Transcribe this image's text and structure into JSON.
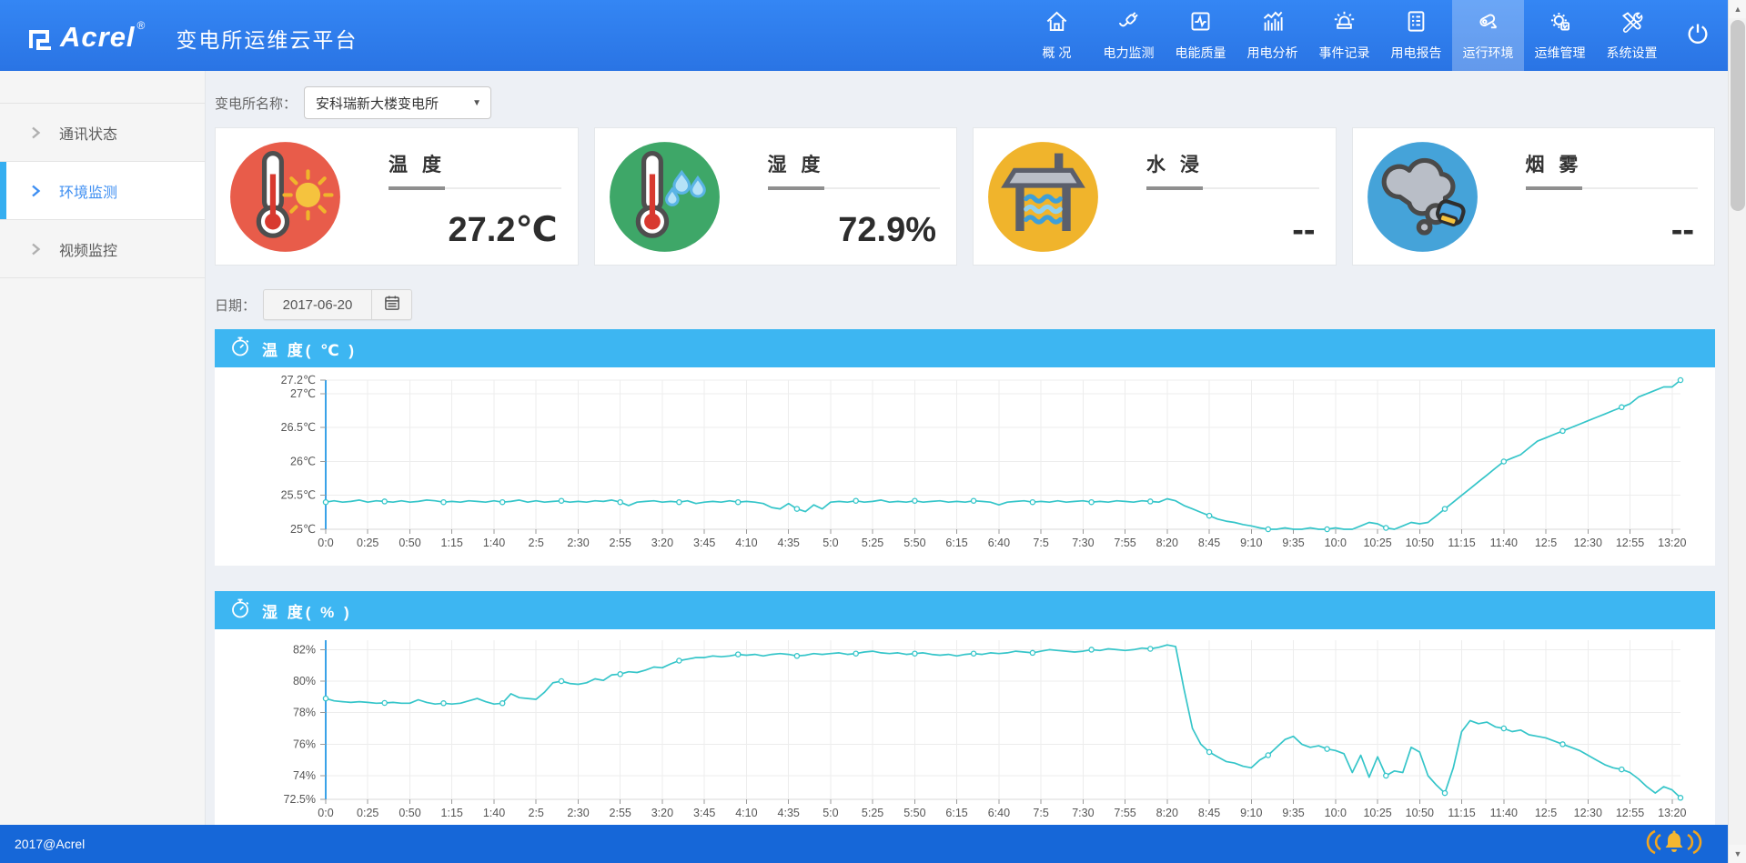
{
  "header": {
    "logo": "Acrel",
    "logo_reg": "®",
    "title": "变电所运维云平台",
    "nav": [
      {
        "label": "概 况",
        "icon": "home-icon",
        "active": false
      },
      {
        "label": "电力监测",
        "icon": "plug-icon",
        "active": false
      },
      {
        "label": "电能质量",
        "icon": "pulse-square-icon",
        "active": false
      },
      {
        "label": "用电分析",
        "icon": "bar-chart-icon",
        "active": false
      },
      {
        "label": "事件记录",
        "icon": "siren-icon",
        "active": false
      },
      {
        "label": "用电报告",
        "icon": "report-icon",
        "active": false
      },
      {
        "label": "运行环境",
        "icon": "cctv-icon",
        "active": true
      },
      {
        "label": "运维管理",
        "icon": "gear-icon",
        "active": false
      },
      {
        "label": "系统设置",
        "icon": "tools-icon",
        "active": false
      }
    ],
    "power_icon": "power-icon"
  },
  "sidebar": {
    "items": [
      {
        "label": "通讯状态",
        "active": false
      },
      {
        "label": "环境监测",
        "active": true
      },
      {
        "label": "视频监控",
        "active": false
      }
    ]
  },
  "toolbar": {
    "station_label": "变电所名称：",
    "station_value": "安科瑞新大楼变电所"
  },
  "cards": [
    {
      "title": "温 度",
      "value": "27.2℃",
      "circle_color": "#e85c4a",
      "icon": "thermometer-sun-icon"
    },
    {
      "title": "湿 度",
      "value": "72.9%",
      "circle_color": "#3ea768",
      "icon": "thermometer-drops-icon"
    },
    {
      "title": "水 浸",
      "value": "--",
      "circle_color": "#f0b42c",
      "icon": "water-tank-icon"
    },
    {
      "title": "烟 雾",
      "value": "--",
      "circle_color": "#45a3d9",
      "icon": "smoke-icon"
    }
  ],
  "date_filter": {
    "label": "日期：",
    "value": "2017-06-20",
    "calendar_icon": "calendar-icon"
  },
  "footer": {
    "copyright": "2017@Acrel",
    "alarm_icon": "alarm-bell-icon"
  },
  "colors": {
    "header_blue": "#2e7cec",
    "panel_header_blue": "#3db6f2",
    "footer_blue": "#1667d8",
    "series_teal": "#35c5c9",
    "axis_blue": "#3aa2e8",
    "alarm_orange": "#f2a51e"
  },
  "chart_data": [
    {
      "type": "line",
      "title": "温 度( ℃ )",
      "ylabel": "℃",
      "color": "#35c5c9",
      "y_min": 25,
      "y_max": 27.2,
      "grid": true,
      "legend": "none",
      "marker_step": 7,
      "x_tick_every": 5,
      "layout": {
        "t": 14,
        "r": 38,
        "b": 40,
        "l": 122
      },
      "y_ticks": [
        {
          "v": 25,
          "label": "25℃"
        },
        {
          "v": 25.5,
          "label": "25.5℃"
        },
        {
          "v": 26,
          "label": "26℃"
        },
        {
          "v": 26.5,
          "label": "26.5℃"
        },
        {
          "v": 27,
          "label": "27℃"
        },
        {
          "v": 27.2,
          "label": "27.2℃"
        }
      ],
      "x_labels": [
        "0:0",
        "0:25",
        "0:50",
        "1:15",
        "1:40",
        "2:5",
        "2:30",
        "2:55",
        "3:20",
        "3:45",
        "4:10",
        "4:35",
        "5:0",
        "5:25",
        "5:50",
        "6:15",
        "6:40",
        "7:5",
        "7:30",
        "7:55",
        "8:20",
        "8:45",
        "9:10",
        "9:35",
        "10:0",
        "10:25",
        "10:50",
        "11:15",
        "11:40",
        "12:5",
        "12:30",
        "12:55",
        "13:20"
      ],
      "values": [
        25.4,
        25.42,
        25.4,
        25.41,
        25.43,
        25.4,
        25.42,
        25.41,
        25.4,
        25.42,
        25.4,
        25.41,
        25.43,
        25.42,
        25.4,
        25.41,
        25.4,
        25.42,
        25.41,
        25.4,
        25.42,
        25.4,
        25.41,
        25.43,
        25.4,
        25.42,
        25.4,
        25.41,
        25.42,
        25.4,
        25.41,
        25.4,
        25.42,
        25.41,
        25.43,
        25.4,
        25.35,
        25.4,
        25.41,
        25.42,
        25.4,
        25.41,
        25.4,
        25.42,
        25.38,
        25.4,
        25.41,
        25.4,
        25.42,
        25.4,
        25.41,
        25.4,
        25.38,
        25.32,
        25.3,
        25.38,
        25.3,
        25.26,
        25.36,
        25.3,
        25.4,
        25.41,
        25.4,
        25.42,
        25.4,
        25.41,
        25.43,
        25.4,
        25.41,
        25.4,
        25.42,
        25.4,
        25.41,
        25.42,
        25.4,
        25.41,
        25.4,
        25.42,
        25.41,
        25.4,
        25.36,
        25.4,
        25.41,
        25.42,
        25.4,
        25.41,
        25.4,
        25.42,
        25.4,
        25.41,
        25.42,
        25.4,
        25.41,
        25.4,
        25.42,
        25.41,
        25.4,
        25.42,
        25.41,
        25.4,
        25.45,
        25.42,
        25.35,
        25.3,
        25.25,
        25.2,
        25.15,
        25.12,
        25.1,
        25.07,
        25.05,
        25.02,
        25.0,
        25.0,
        25.02,
        25.0,
        25.0,
        25.02,
        25.0,
        25.0,
        25.02,
        25.0,
        25.0,
        25.05,
        25.1,
        25.08,
        25.02,
        25.0,
        25.05,
        25.1,
        25.08,
        25.1,
        25.2,
        25.3,
        25.4,
        25.5,
        25.6,
        25.7,
        25.8,
        25.9,
        26.0,
        26.05,
        26.1,
        26.2,
        26.3,
        26.35,
        26.4,
        26.45,
        26.5,
        26.55,
        26.6,
        26.65,
        26.7,
        26.75,
        26.8,
        26.85,
        26.95,
        27.0,
        27.05,
        27.1,
        27.1,
        27.2
      ]
    },
    {
      "type": "line",
      "title": "湿 度( % )",
      "ylabel": "%",
      "color": "#35c5c9",
      "y_min": 72.5,
      "y_max": 82.6,
      "grid": true,
      "legend": "none",
      "marker_step": 7,
      "x_tick_every": 5,
      "layout": {
        "t": 12,
        "r": 38,
        "b": 28,
        "l": 122
      },
      "y_ticks": [
        {
          "v": 72.5,
          "label": "72.5%"
        },
        {
          "v": 74,
          "label": "74%"
        },
        {
          "v": 76,
          "label": "76%"
        },
        {
          "v": 78,
          "label": "78%"
        },
        {
          "v": 80,
          "label": "80%"
        },
        {
          "v": 82,
          "label": "82%"
        }
      ],
      "x_labels": [
        "0:0",
        "0:25",
        "0:50",
        "1:15",
        "1:40",
        "2:5",
        "2:30",
        "2:55",
        "3:20",
        "3:45",
        "4:10",
        "4:35",
        "5:0",
        "5:25",
        "5:50",
        "6:15",
        "6:40",
        "7:5",
        "7:30",
        "7:55",
        "8:20",
        "8:45",
        "9:10",
        "9:35",
        "10:0",
        "10:25",
        "10:50",
        "11:15",
        "11:40",
        "12:5",
        "12:30",
        "12:55",
        "13:20"
      ],
      "values": [
        78.9,
        78.75,
        78.7,
        78.65,
        78.7,
        78.65,
        78.6,
        78.62,
        78.65,
        78.6,
        78.6,
        78.82,
        78.65,
        78.55,
        78.6,
        78.55,
        78.6,
        78.75,
        78.9,
        78.7,
        78.55,
        78.6,
        79.2,
        78.95,
        78.9,
        78.85,
        79.3,
        79.9,
        80.0,
        79.85,
        79.8,
        79.9,
        80.15,
        80.05,
        80.4,
        80.45,
        80.6,
        80.55,
        80.7,
        80.9,
        80.85,
        81.1,
        81.3,
        81.4,
        81.5,
        81.5,
        81.6,
        81.55,
        81.6,
        81.7,
        81.65,
        81.7,
        81.6,
        81.7,
        81.75,
        81.7,
        81.6,
        81.65,
        81.75,
        81.7,
        81.75,
        81.8,
        81.7,
        81.75,
        81.85,
        81.9,
        81.8,
        81.75,
        81.8,
        81.7,
        81.75,
        81.8,
        81.7,
        81.65,
        81.7,
        81.6,
        81.7,
        81.75,
        81.7,
        81.8,
        81.75,
        81.8,
        81.9,
        81.85,
        81.8,
        81.9,
        82.0,
        81.95,
        81.9,
        81.85,
        81.9,
        82.0,
        81.95,
        82.05,
        82.0,
        81.95,
        82.0,
        82.1,
        82.05,
        82.15,
        82.3,
        82.2,
        79.5,
        77.0,
        76.0,
        75.5,
        75.2,
        74.9,
        74.8,
        74.6,
        74.5,
        75.0,
        75.3,
        75.8,
        76.3,
        76.5,
        76.0,
        75.8,
        75.9,
        75.7,
        75.6,
        75.4,
        74.2,
        75.3,
        73.9,
        75.2,
        74.0,
        74.3,
        74.2,
        75.8,
        75.5,
        74.0,
        73.4,
        72.9,
        74.5,
        76.8,
        77.5,
        77.3,
        77.4,
        77.1,
        77.0,
        76.8,
        76.9,
        76.6,
        76.5,
        76.4,
        76.2,
        76.0,
        75.8,
        75.6,
        75.3,
        75.0,
        74.7,
        74.5,
        74.4,
        74.2,
        73.8,
        73.3,
        72.9,
        73.3,
        73.1,
        72.6
      ]
    }
  ]
}
